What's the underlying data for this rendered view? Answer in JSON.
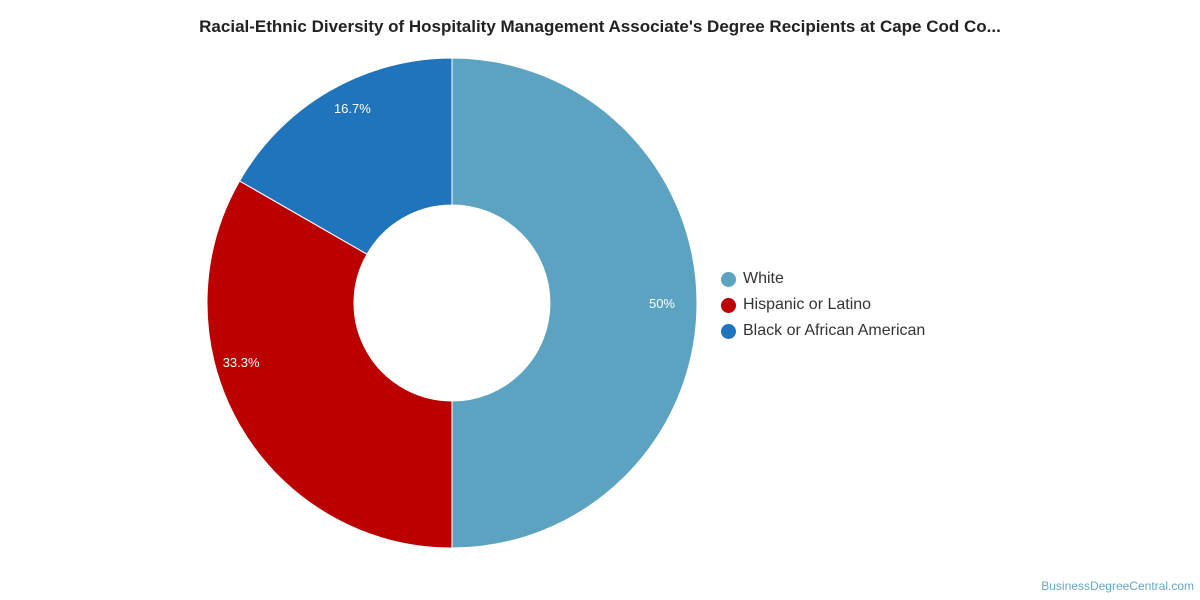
{
  "chart_data": {
    "type": "pie",
    "style": "donut",
    "title": "Racial-Ethnic Diversity of Hospitality Management Associate's Degree Recipients at Cape Cod Co...",
    "series": [
      {
        "name": "White",
        "value": 50,
        "label": "50%",
        "color": "#5ba3c0"
      },
      {
        "name": "Hispanic or Latino",
        "value": 33.3,
        "label": "33.3%",
        "color": "#bb0000"
      },
      {
        "name": "Black or African American",
        "value": 16.7,
        "label": "16.7%",
        "color": "#1f74bb"
      }
    ],
    "legend_position": "right"
  },
  "credit": "BusinessDegreeCentral.com"
}
